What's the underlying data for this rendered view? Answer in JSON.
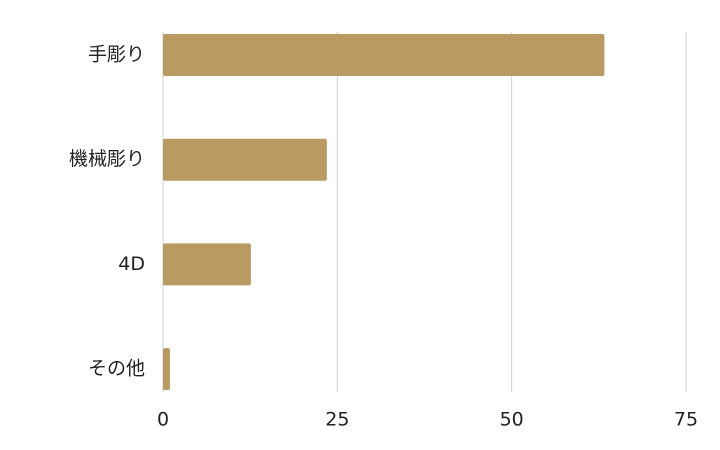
{
  "chart_data": {
    "type": "barh",
    "categories": [
      "手彫り",
      "機械彫り",
      "4D",
      "その他"
    ],
    "values": [
      63.3,
      23.5,
      12.6,
      1.0
    ],
    "color": "#b89a62",
    "xlim": [
      0,
      75
    ],
    "xticks": [
      0,
      25,
      50,
      75
    ],
    "grid": true
  }
}
